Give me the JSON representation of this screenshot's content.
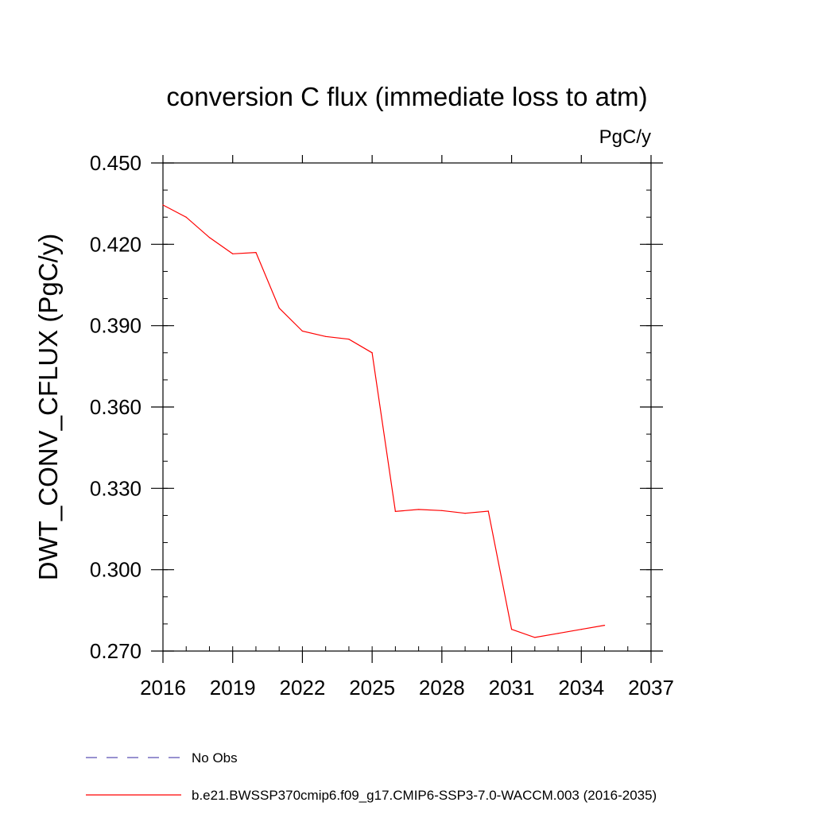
{
  "chart_data": {
    "type": "line",
    "title": "conversion C flux (immediate loss to atm)",
    "units": "PgC/y",
    "ylabel": "DWT_CONV_CFLUX  (PgC/y)",
    "xlabel": "",
    "xlim": [
      2016,
      2037
    ],
    "ylim": [
      0.27,
      0.45
    ],
    "x_ticks": [
      2016,
      2019,
      2022,
      2025,
      2028,
      2031,
      2034,
      2037
    ],
    "x_tick_labels": [
      "2016",
      "2019",
      "2022",
      "2025",
      "2028",
      "2031",
      "2034",
      "2037"
    ],
    "x_minor_step": 1,
    "y_ticks": [
      0.27,
      0.3,
      0.33,
      0.36,
      0.39,
      0.42,
      0.45
    ],
    "y_tick_labels": [
      "0.270",
      "0.300",
      "0.330",
      "0.360",
      "0.390",
      "0.420",
      "0.450"
    ],
    "y_minor_step": 0.01,
    "series": [
      {
        "name": "b.e21.BWSSP370cmip6.f09_g17.CMIP6-SSP3-7.0-WACCM.003 (2016-2035)",
        "color": "#ff0000",
        "dash": "solid",
        "x": [
          2016,
          2017,
          2018,
          2019,
          2020,
          2021,
          2022,
          2023,
          2024,
          2025,
          2026,
          2027,
          2028,
          2029,
          2030,
          2031,
          2032,
          2033,
          2034,
          2035
        ],
        "y": [
          0.4345,
          0.43,
          0.4225,
          0.4165,
          0.417,
          0.3965,
          0.388,
          0.386,
          0.385,
          0.38,
          0.3215,
          0.3222,
          0.3218,
          0.3208,
          0.3216,
          0.278,
          0.275,
          0.2765,
          0.278,
          0.2795
        ]
      }
    ],
    "legend": [
      {
        "label": "No Obs",
        "color": "#5a52b5",
        "dash": "dashed"
      },
      {
        "label": "b.e21.BWSSP370cmip6.f09_g17.CMIP6-SSP3-7.0-WACCM.003 (2016-2035)",
        "color": "#ff0000",
        "dash": "solid"
      }
    ],
    "legend_position": "bottom"
  }
}
